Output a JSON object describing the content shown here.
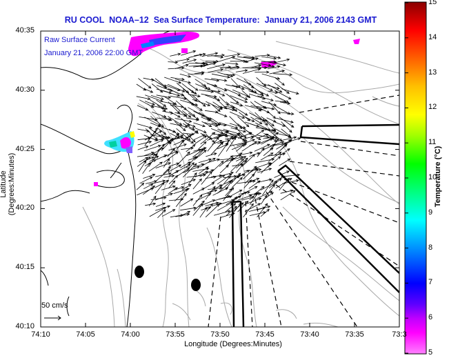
{
  "title": "RU COOL  NOAA–12  Sea Surface Temperature:  January 21, 2006 2143 GMT",
  "current_legend": {
    "line1": "Raw Surface Current",
    "line2": "January 21, 2006 22:00 GMT"
  },
  "scale_arrow_label": "50 cm/s",
  "axes": {
    "xlabel": "Longitude (Degrees:Minutes)",
    "ylabel": "Latitude (Degrees:Minutes)",
    "x_ticks": [
      "74:10",
      "74:05",
      "74:00",
      "73:55",
      "73:50",
      "73:45",
      "73:40",
      "73:35",
      "73:3"
    ],
    "y_ticks": [
      "40:35",
      "40:30",
      "40:25",
      "40:20",
      "40:15",
      "40:10"
    ]
  },
  "colorbar": {
    "label": "Temperature (°C)",
    "ticks": [
      "15",
      "14",
      "13",
      "12",
      "11",
      "10",
      "9",
      "8",
      "7",
      "6",
      "5"
    ],
    "range": [
      5,
      15
    ],
    "colors": [
      "#ff00ff",
      "#ff80ff",
      "#8000ff",
      "#0000ff",
      "#0080ff",
      "#00ffff",
      "#00ff80",
      "#00ff00",
      "#80ff00",
      "#ffff00",
      "#ffc000",
      "#ff8000",
      "#ff0000",
      "#d00000",
      "#a00000"
    ]
  },
  "colors": {
    "title": "#1a1ad0",
    "legend_text": "#1a1ad0",
    "bathymetry": "#a8a8a8",
    "coastline": "#000000",
    "sst_patch": "#ff00ff"
  }
}
